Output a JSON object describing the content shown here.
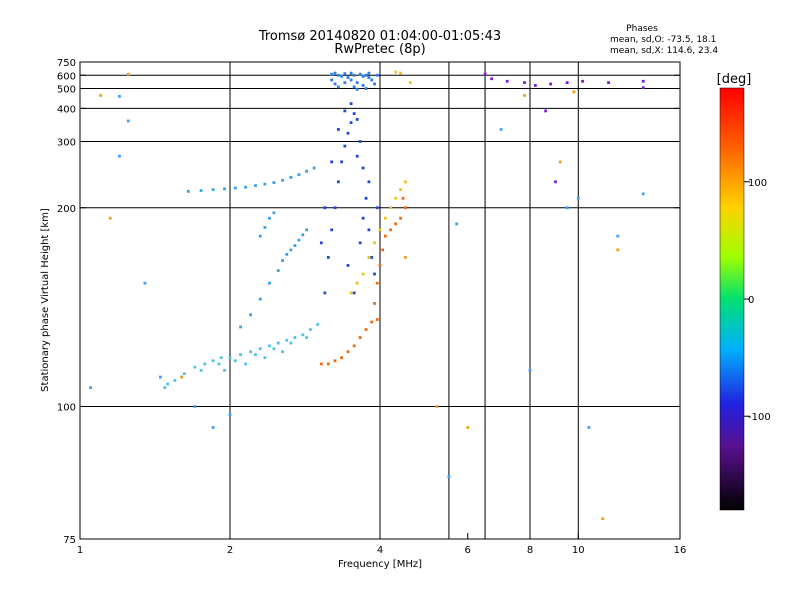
{
  "chart_data": {
    "type": "scatter",
    "title": "Tromsø 20140820 01:04:00-01:05:43",
    "subtitle": "RwPretec (8p)",
    "stats": {
      "heading": "Phases",
      "line1": "mean, sd,O: -73.5, 18.1",
      "line2": "mean, sd,X: 114.6, 23.4"
    },
    "xlabel": "Frequency [MHz]",
    "ylabel": "Stationary phase Virtual Height [km]",
    "x_scale": "log",
    "y_scale": "reciprocal",
    "xlim": [
      1,
      16
    ],
    "ylim": [
      75,
      750
    ],
    "x_ticks": [
      1,
      2,
      4,
      6,
      8,
      10,
      16
    ],
    "x_tick_labels": [
      "1",
      "2",
      "4",
      "6",
      "8",
      "10",
      "16"
    ],
    "x_grid": [
      2,
      4,
      5.5,
      6.5,
      8,
      10
    ],
    "y_ticks": [
      75,
      100,
      200,
      300,
      400,
      500,
      600,
      750
    ],
    "y_tick_labels": [
      "75",
      "100",
      "200",
      "300",
      "400",
      "500",
      "600",
      "750"
    ],
    "y_grid": [
      100,
      200,
      300,
      400,
      500,
      600
    ],
    "grid": true,
    "colorbar": {
      "label": "[deg]",
      "min": -180,
      "max": 180,
      "ticks": [
        100,
        0,
        -100
      ],
      "tick_labels": [
        "100",
        "0",
        "-100"
      ]
    },
    "series": [
      {
        "color": "#4fc3e8",
        "phase": -60,
        "points": [
          [
            1.48,
            105
          ],
          [
            1.55,
            107
          ],
          [
            1.62,
            109
          ],
          [
            1.7,
            111
          ],
          [
            1.78,
            112
          ],
          [
            1.85,
            113
          ],
          [
            1.92,
            114
          ],
          [
            2.0,
            114
          ],
          [
            2.1,
            115
          ],
          [
            2.2,
            116
          ],
          [
            2.3,
            117
          ],
          [
            2.4,
            118
          ],
          [
            2.5,
            119
          ],
          [
            2.6,
            120
          ],
          [
            2.7,
            121
          ],
          [
            2.8,
            122
          ],
          [
            2.9,
            124
          ],
          [
            3.0,
            126
          ],
          [
            1.5,
            106
          ],
          [
            1.6,
            108
          ],
          [
            1.75,
            110
          ],
          [
            1.9,
            112
          ],
          [
            2.05,
            113
          ],
          [
            2.25,
            115
          ],
          [
            2.45,
            117
          ],
          [
            2.65,
            119
          ],
          [
            2.85,
            121
          ],
          [
            1.95,
            110
          ],
          [
            2.15,
            112
          ],
          [
            2.35,
            114
          ],
          [
            2.55,
            116
          ]
        ]
      },
      {
        "color": "#3aa0e8",
        "phase": -75,
        "points": [
          [
            2.1,
            125
          ],
          [
            2.2,
            130
          ],
          [
            2.3,
            137
          ],
          [
            2.4,
            145
          ],
          [
            2.5,
            152
          ],
          [
            2.55,
            158
          ],
          [
            2.6,
            162
          ],
          [
            2.65,
            165
          ],
          [
            2.7,
            168
          ],
          [
            2.75,
            172
          ],
          [
            2.8,
            176
          ],
          [
            2.85,
            180
          ],
          [
            1.65,
            218
          ],
          [
            1.75,
            219
          ],
          [
            1.85,
            220
          ],
          [
            1.95,
            221
          ],
          [
            2.05,
            222
          ],
          [
            2.15,
            223
          ],
          [
            2.25,
            225
          ],
          [
            2.35,
            227
          ],
          [
            2.45,
            229
          ],
          [
            2.55,
            232
          ],
          [
            2.65,
            236
          ],
          [
            2.75,
            240
          ],
          [
            2.85,
            245
          ],
          [
            2.95,
            250
          ],
          [
            2.3,
            175
          ],
          [
            2.35,
            182
          ],
          [
            2.4,
            190
          ],
          [
            2.45,
            195
          ]
        ]
      },
      {
        "color": "#2b7de8",
        "phase": -90,
        "points": [
          [
            3.2,
            610
          ],
          [
            3.25,
            620
          ],
          [
            3.3,
            600
          ],
          [
            3.35,
            590
          ],
          [
            3.4,
            615
          ],
          [
            3.45,
            580
          ],
          [
            3.5,
            560
          ],
          [
            3.55,
            600
          ],
          [
            3.6,
            540
          ],
          [
            3.65,
            610
          ],
          [
            3.7,
            520
          ],
          [
            3.75,
            500
          ],
          [
            3.8,
            580
          ],
          [
            3.85,
            560
          ],
          [
            3.9,
            530
          ],
          [
            3.95,
            600
          ],
          [
            3.2,
            560
          ],
          [
            3.3,
            510
          ],
          [
            3.5,
            620
          ],
          [
            3.7,
            590
          ],
          [
            3.4,
            540
          ],
          [
            3.6,
            495
          ],
          [
            3.8,
            620
          ],
          [
            3.25,
            530
          ],
          [
            3.55,
            510
          ],
          [
            3.75,
            600
          ]
        ]
      },
      {
        "color": "#2348d8",
        "phase": -105,
        "points": [
          [
            3.1,
            140
          ],
          [
            3.15,
            160
          ],
          [
            3.2,
            180
          ],
          [
            3.25,
            200
          ],
          [
            3.3,
            230
          ],
          [
            3.35,
            260
          ],
          [
            3.4,
            290
          ],
          [
            3.45,
            320
          ],
          [
            3.5,
            350
          ],
          [
            3.55,
            380
          ],
          [
            3.6,
            360
          ],
          [
            3.65,
            300
          ],
          [
            3.7,
            250
          ],
          [
            3.75,
            210
          ],
          [
            3.8,
            180
          ],
          [
            3.85,
            160
          ],
          [
            3.1,
            200
          ],
          [
            3.2,
            260
          ],
          [
            3.3,
            330
          ],
          [
            3.4,
            390
          ],
          [
            3.5,
            420
          ],
          [
            3.6,
            270
          ],
          [
            3.7,
            190
          ],
          [
            3.8,
            230
          ],
          [
            3.9,
            150
          ],
          [
            3.05,
            170
          ],
          [
            3.45,
            155
          ],
          [
            3.55,
            140
          ],
          [
            3.65,
            170
          ],
          [
            3.95,
            200
          ]
        ]
      },
      {
        "color": "#f06a10",
        "phase": 160,
        "points": [
          [
            3.05,
            112
          ],
          [
            3.15,
            112
          ],
          [
            3.25,
            113
          ],
          [
            3.35,
            114
          ],
          [
            3.45,
            116
          ],
          [
            3.55,
            118
          ],
          [
            3.65,
            121
          ],
          [
            3.75,
            124
          ],
          [
            3.85,
            127
          ],
          [
            3.95,
            128
          ],
          [
            3.9,
            135
          ],
          [
            3.95,
            145
          ],
          [
            4.0,
            155
          ],
          [
            4.05,
            165
          ],
          [
            4.1,
            175
          ],
          [
            4.2,
            180
          ],
          [
            4.3,
            185
          ],
          [
            4.4,
            190
          ],
          [
            4.5,
            200
          ],
          [
            4.45,
            210
          ]
        ]
      },
      {
        "color": "#f0c020",
        "phase": 120,
        "points": [
          [
            3.5,
            140
          ],
          [
            3.6,
            145
          ],
          [
            3.7,
            150
          ],
          [
            3.8,
            160
          ],
          [
            3.9,
            170
          ],
          [
            4.0,
            180
          ],
          [
            4.1,
            190
          ],
          [
            4.2,
            200
          ],
          [
            4.3,
            210
          ],
          [
            4.4,
            220
          ],
          [
            4.5,
            230
          ],
          [
            4.3,
            630
          ],
          [
            4.4,
            620
          ],
          [
            4.6,
            540
          ]
        ]
      },
      {
        "color": "#7a1fd8",
        "phase": -130,
        "points": [
          [
            6.5,
            610
          ],
          [
            6.7,
            570
          ],
          [
            7.2,
            550
          ],
          [
            7.8,
            540
          ],
          [
            8.2,
            520
          ],
          [
            8.8,
            530
          ],
          [
            9.5,
            540
          ],
          [
            10.2,
            550
          ],
          [
            11.5,
            540
          ],
          [
            13.5,
            550
          ],
          [
            8.6,
            390
          ],
          [
            9.0,
            230
          ],
          [
            13.5,
            505
          ]
        ]
      },
      {
        "color": "#40a0ff",
        "phase": -80,
        "points": [
          [
            1.05,
            105
          ],
          [
            1.2,
            455
          ],
          [
            1.25,
            355
          ],
          [
            1.2,
            270
          ],
          [
            1.35,
            145
          ],
          [
            1.45,
            108
          ],
          [
            1.7,
            100
          ],
          [
            1.85,
            95
          ],
          [
            2.0,
            98
          ],
          [
            5.5,
            85
          ],
          [
            5.7,
            185
          ],
          [
            7.0,
            330
          ],
          [
            8.0,
            110
          ],
          [
            9.5,
            200
          ],
          [
            10.0,
            210
          ],
          [
            10.5,
            95
          ],
          [
            12.0,
            175
          ],
          [
            13.5,
            215
          ]
        ]
      },
      {
        "color": "#f0a020",
        "phase": 120,
        "points": [
          [
            1.1,
            460
          ],
          [
            1.25,
            610
          ],
          [
            1.15,
            190
          ],
          [
            1.6,
            108
          ],
          [
            4.5,
            160
          ],
          [
            5.2,
            100
          ],
          [
            6.0,
            95
          ],
          [
            7.8,
            460
          ],
          [
            9.2,
            260
          ],
          [
            9.8,
            480
          ],
          [
            11.2,
            78
          ],
          [
            12.0,
            165
          ]
        ]
      }
    ]
  }
}
